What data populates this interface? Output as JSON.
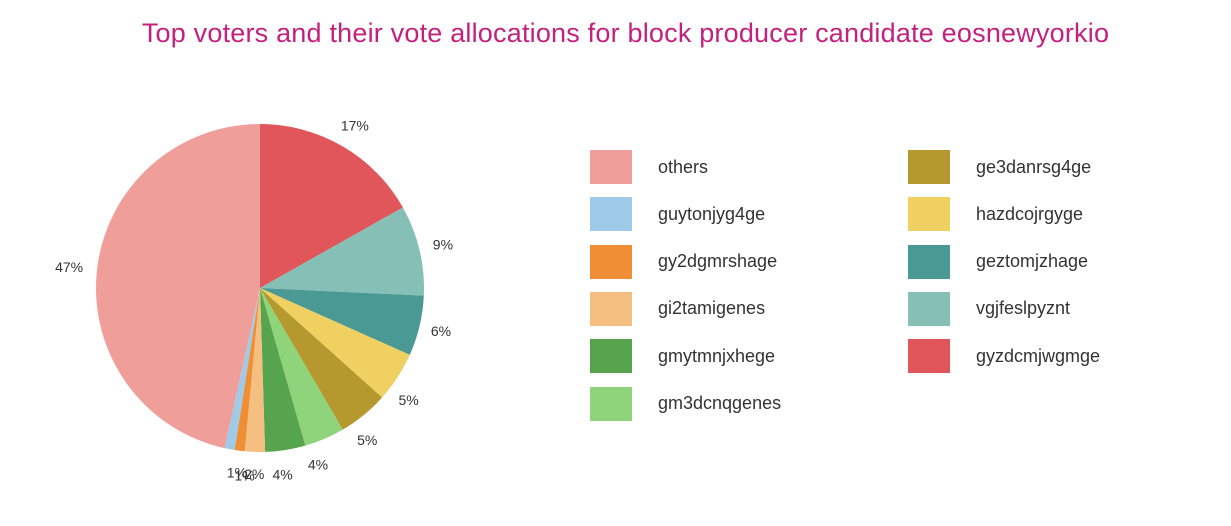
{
  "chart_data": {
    "type": "pie",
    "title": "Top voters and their vote allocations for block producer candidate eosnewyorkio",
    "series": [
      {
        "name": "gyzdcmjwgmge",
        "value": 17,
        "label": "17%",
        "color": "#e0565a"
      },
      {
        "name": "vgjfeslpyznt",
        "value": 9,
        "label": "9%",
        "color": "#86bfb5"
      },
      {
        "name": "geztomjzhage",
        "value": 6,
        "label": "6%",
        "color": "#4a9995"
      },
      {
        "name": "hazdcojrgyge",
        "value": 5,
        "label": "5%",
        "color": "#f0d060"
      },
      {
        "name": "ge3danrsg4ge",
        "value": 5,
        "label": "5%",
        "color": "#b5982e"
      },
      {
        "name": "gm3dcnqgenes",
        "value": 4,
        "label": "4%",
        "color": "#8fd47a"
      },
      {
        "name": "gmytmnjxhege",
        "value": 4,
        "label": "4%",
        "color": "#56a54e"
      },
      {
        "name": "gi2tamigenes",
        "value": 2,
        "label": "2%",
        "color": "#f4bf80"
      },
      {
        "name": "gy2dgmrshage",
        "value": 1,
        "label": "1%",
        "color": "#ef8e35"
      },
      {
        "name": "guytonjyg4ge",
        "value": 1,
        "label": "1%",
        "color": "#a0cbe8"
      },
      {
        "name": "others",
        "value": 47,
        "label": "47%",
        "color": "#f09e9a"
      }
    ],
    "legend_columns": [
      [
        "others",
        "guytonjyg4ge",
        "gy2dgmrshage",
        "gi2tamigenes",
        "gmytmnjxhege",
        "gm3dcnqgenes"
      ],
      [
        "ge3danrsg4ge",
        "hazdcojrgyge",
        "geztomjzhage",
        "vgjfeslpyznt",
        "gyzdcmjwgmge"
      ]
    ],
    "legend_position": "right",
    "title_color": "#c4217e"
  }
}
